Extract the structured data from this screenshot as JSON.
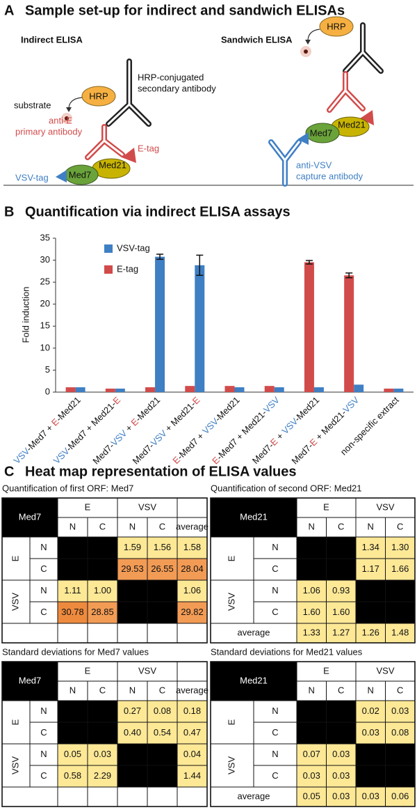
{
  "panel_a": {
    "letter": "A",
    "title": "Sample set-up for indirect and sandwich ELISAs",
    "indirect": {
      "title": "Indirect ELISA",
      "hrp": "HRP",
      "substrate": "substrate",
      "secondary": [
        "HRP-conjugated",
        "secondary antibody"
      ],
      "primary": [
        "anti-E",
        "primary antibody"
      ],
      "e_tag": "E-tag",
      "vsv_tag": "VSV-tag",
      "med7": "Med7",
      "med21": "Med21"
    },
    "sandwich": {
      "title": "Sandwich ELISA",
      "hrp": "HRP",
      "med7": "Med7",
      "med21": "Med21",
      "capture": [
        "anti-VSV",
        "capture antibody"
      ]
    }
  },
  "chart_data": {
    "type": "bar",
    "letter": "B",
    "title": "Quantification via indirect ELISA assays",
    "y_label": "Fold induction",
    "categories": [
      [
        {
          "text": "VSV",
          "color": "#3f7fc4"
        },
        {
          "text": "-Med7 + "
        },
        {
          "text": "E",
          "color": "#d24b4b"
        },
        {
          "text": "-Med21"
        }
      ],
      [
        {
          "text": "VSV",
          "color": "#3f7fc4"
        },
        {
          "text": "-Med7 + Med21-"
        },
        {
          "text": "E",
          "color": "#d24b4b"
        }
      ],
      [
        {
          "text": "Med7-"
        },
        {
          "text": "VSV",
          "color": "#3f7fc4"
        },
        {
          "text": " + "
        },
        {
          "text": "E",
          "color": "#d24b4b"
        },
        {
          "text": "-Med21"
        }
      ],
      [
        {
          "text": "Med7-"
        },
        {
          "text": "VSV",
          "color": "#3f7fc4"
        },
        {
          "text": " + Med21-"
        },
        {
          "text": "E",
          "color": "#d24b4b"
        }
      ],
      [
        {
          "text": "E",
          "color": "#d24b4b"
        },
        {
          "text": "-Med7 + "
        },
        {
          "text": "VSV",
          "color": "#3f7fc4"
        },
        {
          "text": "-Med21"
        }
      ],
      [
        {
          "text": "E",
          "color": "#d24b4b"
        },
        {
          "text": "-Med7 + Med21-"
        },
        {
          "text": "VSV",
          "color": "#3f7fc4"
        }
      ],
      [
        {
          "text": "Med7-"
        },
        {
          "text": "E",
          "color": "#d24b4b"
        },
        {
          "text": " + "
        },
        {
          "text": "VSV",
          "color": "#3f7fc4"
        },
        {
          "text": "-Med21"
        }
      ],
      [
        {
          "text": "Med7-"
        },
        {
          "text": "E",
          "color": "#d24b4b"
        },
        {
          "text": " + Med21-"
        },
        {
          "text": "VSV",
          "color": "#3f7fc4"
        }
      ],
      [
        {
          "text": "non-specific extract"
        }
      ]
    ],
    "series": [
      {
        "name": "VSV-tag",
        "color": "#3f7fc4",
        "values": [
          1.1,
          0.8,
          30.78,
          28.85,
          1.1,
          1.1,
          1.1,
          1.7,
          0.8
        ],
        "errors": [
          null,
          null,
          0.58,
          2.29,
          null,
          null,
          null,
          null,
          null
        ]
      },
      {
        "name": "E-tag",
        "color": "#d24b4b",
        "values": [
          1.1,
          0.8,
          1.1,
          1.4,
          1.4,
          1.4,
          29.53,
          26.55,
          0.8
        ],
        "errors": [
          null,
          null,
          null,
          null,
          null,
          null,
          0.4,
          0.54,
          null
        ]
      }
    ],
    "ylim": [
      0,
      35
    ],
    "yticks": [
      0,
      5,
      10,
      15,
      20,
      25,
      30,
      35
    ],
    "legend": "upper left"
  },
  "panel_c": {
    "letter": "C",
    "title": "Heat map representation of ELISA values",
    "tables": [
      {
        "title": "Quantification of first ORF: Med7",
        "corner": "Med7",
        "col_groups": [
          "E",
          "VSV"
        ],
        "col_subs": [
          "N",
          "C",
          "N",
          "C"
        ],
        "extra_col": "average",
        "row_groups": [
          "E",
          "VSV"
        ],
        "row_subs": [
          "N",
          "C",
          "N",
          "C"
        ],
        "rows": [
          [
            null,
            null,
            "1.59",
            "1.56",
            "1.58"
          ],
          [
            null,
            null,
            "29.53",
            "26.55",
            "28.04"
          ],
          [
            "1.11",
            "1.00",
            null,
            null,
            "1.06"
          ],
          [
            "30.78",
            "28.85",
            null,
            null,
            "29.82"
          ]
        ]
      },
      {
        "title": "Quantification of second ORF: Med21",
        "corner": "Med21",
        "col_groups": [
          "E",
          "VSV"
        ],
        "col_subs": [
          "N",
          "C",
          "N",
          "C"
        ],
        "row_groups": [
          "E",
          "VSV"
        ],
        "row_subs": [
          "N",
          "C",
          "N",
          "C"
        ],
        "rows": [
          [
            null,
            null,
            "1.34",
            "1.30"
          ],
          [
            null,
            null,
            "1.17",
            "1.66"
          ],
          [
            "1.06",
            "0.93",
            null,
            null
          ],
          [
            "1.60",
            "1.60",
            null,
            null
          ]
        ],
        "footer_label": "average",
        "footer": [
          "1.33",
          "1.27",
          "1.26",
          "1.48"
        ]
      },
      {
        "title": "Standard deviations for Med7 values",
        "corner": "Med7",
        "col_groups": [
          "E",
          "VSV"
        ],
        "col_subs": [
          "N",
          "C",
          "N",
          "C"
        ],
        "extra_col": "average",
        "row_groups": [
          "E",
          "VSV"
        ],
        "row_subs": [
          "N",
          "C",
          "N",
          "C"
        ],
        "rows": [
          [
            null,
            null,
            "0.27",
            "0.08",
            "0.18"
          ],
          [
            null,
            null,
            "0.40",
            "0.54",
            "0.47"
          ],
          [
            "0.05",
            "0.03",
            null,
            null,
            "0.04"
          ],
          [
            "0.58",
            "2.29",
            null,
            null,
            "1.44"
          ]
        ]
      },
      {
        "title": "Standard deviations for Med21 values",
        "corner": "Med21",
        "col_groups": [
          "E",
          "VSV"
        ],
        "col_subs": [
          "N",
          "C",
          "N",
          "C"
        ],
        "row_groups": [
          "E",
          "VSV"
        ],
        "row_subs": [
          "N",
          "C",
          "N",
          "C"
        ],
        "rows": [
          [
            null,
            null,
            "0.02",
            "0.03"
          ],
          [
            null,
            null,
            "0.03",
            "0.08"
          ],
          [
            "0.07",
            "0.03",
            null,
            null
          ],
          [
            "0.03",
            "0.03",
            null,
            null
          ]
        ],
        "footer_label": "average",
        "footer": [
          "0.05",
          "0.03",
          "0.03",
          "0.06"
        ]
      }
    ]
  }
}
